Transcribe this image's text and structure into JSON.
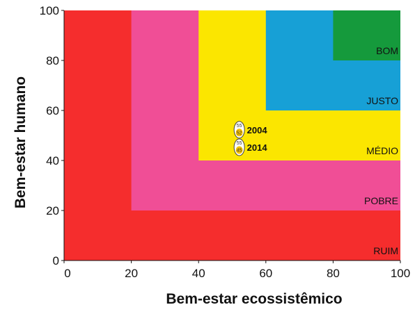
{
  "chart_data": {
    "type": "area",
    "xlabel": "Bem-estar ecossistêmico",
    "ylabel": "Bem-estar humano",
    "xlim": [
      0,
      100
    ],
    "ylim": [
      0,
      100
    ],
    "x_ticks": [
      "0",
      "20",
      "40",
      "60",
      "80",
      "100"
    ],
    "y_ticks": [
      "0",
      "20",
      "40",
      "60",
      "80",
      "100"
    ],
    "grid": false,
    "zones": [
      {
        "label": "RUIM",
        "min": 0,
        "color": "#f52d2d"
      },
      {
        "label": "POBRE",
        "min": 20,
        "color": "#f04e96"
      },
      {
        "label": "MÉDIO",
        "min": 40,
        "color": "#fbe600"
      },
      {
        "label": "JUSTO",
        "min": 60,
        "color": "#17a0d6"
      },
      {
        "label": "BOM",
        "min": 80,
        "color": "#159a3c"
      }
    ],
    "points": [
      {
        "label": "2004",
        "x": 55,
        "y": 52,
        "egg_top": "55",
        "egg_bottom": "52"
      },
      {
        "label": "2014",
        "x": 55,
        "y": 45,
        "egg_top": "55",
        "egg_bottom": "45"
      }
    ]
  }
}
